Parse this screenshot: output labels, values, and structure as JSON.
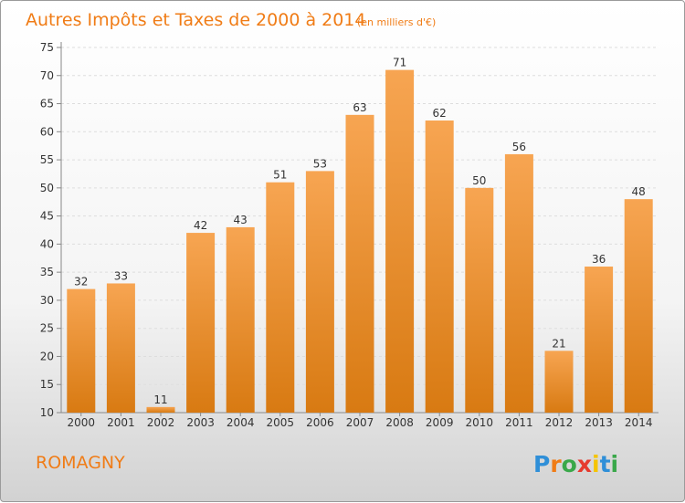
{
  "chart_data": {
    "type": "bar",
    "title": "Autres Impôts et Taxes de 2000 à 2014",
    "subtitle": "(en milliers d'€)",
    "categories": [
      "2000",
      "2001",
      "2002",
      "2003",
      "2004",
      "2005",
      "2006",
      "2007",
      "2008",
      "2009",
      "2010",
      "2011",
      "2012",
      "2013",
      "2014"
    ],
    "values": [
      32,
      33,
      11,
      42,
      43,
      51,
      53,
      63,
      71,
      62,
      50,
      56,
      21,
      36,
      48
    ],
    "ylim": [
      10,
      75
    ],
    "yticks": [
      10,
      15,
      20,
      25,
      30,
      35,
      40,
      45,
      50,
      55,
      60,
      65,
      70,
      75
    ],
    "grid": true,
    "colors": {
      "bar_top": "#f7a552",
      "bar_bottom": "#d87a12",
      "text": "#f07c16"
    }
  },
  "location": "ROMAGNY",
  "logo": {
    "text": "Proxiti",
    "letter_colors": [
      "#2f8fd8",
      "#f07c16",
      "#3aa84a",
      "#e63a2e",
      "#f5c400",
      "#2f8fd8",
      "#3aa84a"
    ]
  }
}
